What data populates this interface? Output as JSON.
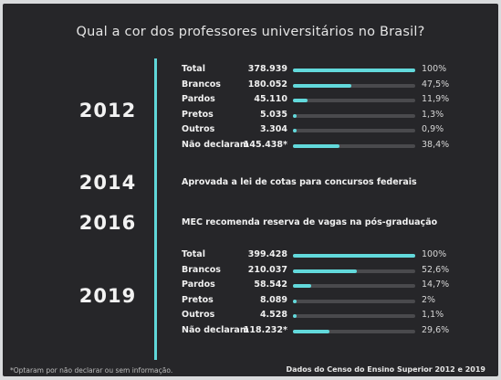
{
  "title": "Qual a cor dos professores universitários no Brasil?",
  "chart_data": {
    "type": "bar",
    "title": "Qual a cor dos professores universitários no Brasil?",
    "timeline": [
      {
        "year": "2012",
        "rows": [
          {
            "label": "Total",
            "value": "378.939",
            "percent": 100,
            "percent_label": "100%"
          },
          {
            "label": "Brancos",
            "value": "180.052",
            "percent": 47.5,
            "percent_label": "47,5%"
          },
          {
            "label": "Pardos",
            "value": "45.110",
            "percent": 11.9,
            "percent_label": "11,9%"
          },
          {
            "label": "Pretos",
            "value": "5.035",
            "percent": 1.3,
            "percent_label": "1,3%"
          },
          {
            "label": "Outros",
            "value": "3.304",
            "percent": 0.9,
            "percent_label": "0,9%"
          },
          {
            "label": "Não declaram",
            "value": "145.438*",
            "percent": 38.4,
            "percent_label": "38,4%"
          }
        ]
      },
      {
        "year": "2014",
        "event": "Aprovada a lei de cotas para concursos federais"
      },
      {
        "year": "2016",
        "event": "MEC recomenda reserva de vagas na pós-graduação"
      },
      {
        "year": "2019",
        "rows": [
          {
            "label": "Total",
            "value": "399.428",
            "percent": 100,
            "percent_label": "100%"
          },
          {
            "label": "Brancos",
            "value": "210.037",
            "percent": 52.6,
            "percent_label": "52,6%"
          },
          {
            "label": "Pardos",
            "value": "58.542",
            "percent": 14.7,
            "percent_label": "14,7%"
          },
          {
            "label": "Pretos",
            "value": "8.089",
            "percent": 2,
            "percent_label": "2%"
          },
          {
            "label": "Outros",
            "value": "4.528",
            "percent": 1.1,
            "percent_label": "1,1%"
          },
          {
            "label": "Não declaram",
            "value": "118.232*",
            "percent": 29.6,
            "percent_label": "29,6%"
          }
        ]
      }
    ],
    "xlim": [
      0,
      100
    ]
  },
  "footnote": "*Optaram por não declarar ou sem informação.",
  "source": "Dados do Censo do Ensino Superior 2012 e 2019",
  "colors": {
    "background": "#262629",
    "accent": "#62d9db",
    "track": "#4a4a4d"
  }
}
